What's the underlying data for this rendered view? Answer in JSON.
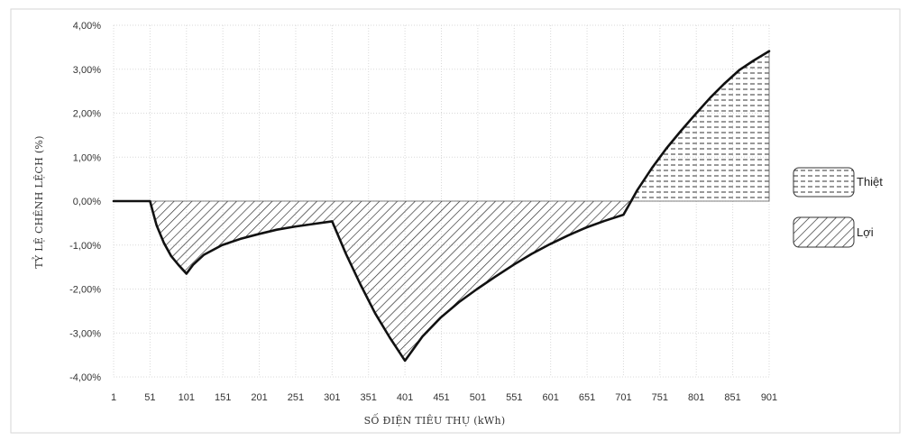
{
  "chart_data": {
    "type": "area",
    "title": "",
    "xlabel": "SỐ ĐIỆN TIÊU THỤ (kWh)",
    "ylabel": "TỶ LỆ CHÊNH LỆCH (%)",
    "ylim": [
      -4,
      4
    ],
    "xlim": [
      1,
      901
    ],
    "x_ticks": [
      "1",
      "51",
      "101",
      "151",
      "201",
      "251",
      "301",
      "351",
      "401",
      "451",
      "501",
      "551",
      "601",
      "651",
      "701",
      "751",
      "801",
      "851",
      "901"
    ],
    "y_ticks": [
      "4,00%",
      "3,00%",
      "2,00%",
      "1,00%",
      "0,00%",
      "-1,00%",
      "-2,00%",
      "-3,00%",
      "-4,00%"
    ],
    "y_tick_values": [
      4,
      3,
      2,
      1,
      0,
      -1,
      -2,
      -3,
      -4
    ],
    "grid": true,
    "legend_position": "right",
    "series": [
      {
        "name": "",
        "x": [
          1,
          51,
          55,
          60,
          70,
          80,
          90,
          101,
          110,
          125,
          150,
          175,
          200,
          225,
          250,
          275,
          301,
          320,
          340,
          360,
          380,
          401,
          425,
          450,
          475,
          500,
          525,
          550,
          575,
          600,
          625,
          650,
          675,
          701,
          720,
          740,
          760,
          780,
          800,
          820,
          840,
          860,
          880,
          901
        ],
        "y": [
          0,
          0,
          -0.25,
          -0.55,
          -0.95,
          -1.25,
          -1.45,
          -1.65,
          -1.45,
          -1.22,
          -1.0,
          -0.86,
          -0.75,
          -0.65,
          -0.58,
          -0.52,
          -0.46,
          -1.2,
          -1.9,
          -2.55,
          -3.1,
          -3.63,
          -3.08,
          -2.65,
          -2.3,
          -2.0,
          -1.72,
          -1.45,
          -1.2,
          -0.98,
          -0.78,
          -0.6,
          -0.45,
          -0.31,
          0.25,
          0.75,
          1.2,
          1.6,
          1.98,
          2.35,
          2.68,
          2.98,
          3.2,
          3.41
        ]
      }
    ],
    "legend": [
      {
        "label": "Thiệt",
        "pattern": "dashed-horizontal"
      },
      {
        "label": "Lợi",
        "pattern": "diagonal-hatch"
      }
    ],
    "colors": {
      "line": "#111111",
      "grid": "#d9d9d9",
      "frame": "#d6d6d6",
      "text": "#333333"
    }
  }
}
